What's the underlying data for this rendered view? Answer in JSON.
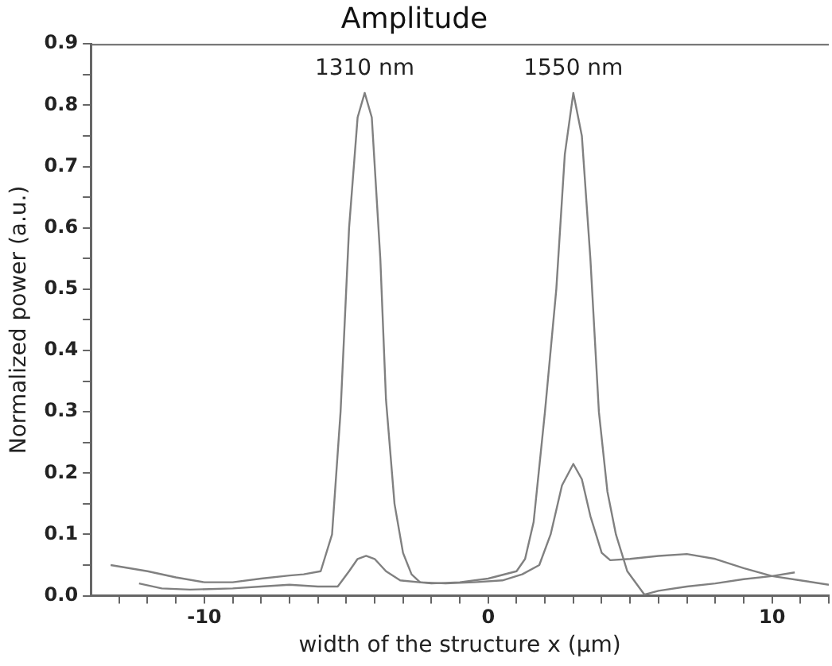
{
  "chart_data": {
    "type": "line",
    "title": "Amplitude",
    "xlabel": "width of the structure x (µm)",
    "ylabel": "Normalized power (a.u.)",
    "xlim": [
      -14,
      12
    ],
    "xticks": [
      {
        "value": -13,
        "label": null
      },
      {
        "value": -12,
        "label": null
      },
      {
        "value": -11,
        "label": null
      },
      -10,
      {
        "value": -9,
        "label": null
      },
      {
        "value": -8,
        "label": null
      },
      {
        "value": -7,
        "label": null
      },
      {
        "value": -6,
        "label": null
      },
      {
        "value": -5,
        "label": null
      },
      {
        "value": -4,
        "label": null
      },
      {
        "value": -3,
        "label": null
      },
      {
        "value": -2,
        "label": null
      },
      {
        "value": -1,
        "label": null
      },
      0,
      {
        "value": 1,
        "label": null
      },
      {
        "value": 2,
        "label": null
      },
      {
        "value": 3,
        "label": null
      },
      {
        "value": 4,
        "label": null
      },
      {
        "value": 5,
        "label": null
      },
      {
        "value": 6,
        "label": null
      },
      {
        "value": 7,
        "label": null
      },
      {
        "value": 8,
        "label": null
      },
      {
        "value": 9,
        "label": null
      },
      10,
      {
        "value": 11,
        "label": null
      },
      {
        "value": 12,
        "label": null
      }
    ],
    "ylim": [
      0,
      0.9
    ],
    "yticks": [
      {
        "value": 0,
        "label": "0.0"
      },
      {
        "value": 0.05,
        "label": null
      },
      0.1,
      {
        "value": 0.15,
        "label": null
      },
      0.2,
      {
        "value": 0.25,
        "label": null
      },
      0.3,
      {
        "value": 0.35,
        "label": null
      },
      0.4,
      {
        "value": 0.45,
        "label": null
      },
      0.5,
      {
        "value": 0.55,
        "label": null
      },
      0.6,
      {
        "value": 0.65,
        "label": null
      },
      0.7,
      {
        "value": 0.75,
        "label": null
      },
      0.8,
      {
        "value": 0.85,
        "label": null
      },
      0.9
    ],
    "grid": false,
    "legend": false,
    "marker": "none",
    "line_style": "solid",
    "series": [
      {
        "name": "1310 nm",
        "color": "#808080",
        "x": [
          -13.3,
          -12,
          -11,
          -10,
          -9,
          -8,
          -7,
          -6.5,
          -5.9,
          -5.5,
          -5.2,
          -4.9,
          -4.6,
          -4.35,
          -4.1,
          -3.8,
          -3.6,
          -3.3,
          -3,
          -2.7,
          -2.4,
          -1.5,
          -0.5,
          0.5,
          1.2,
          1.8,
          2.2,
          2.6,
          3,
          3.3,
          3.6,
          4,
          4.3,
          5,
          6,
          7,
          8,
          9,
          10,
          11,
          12
        ],
        "values": [
          0.05,
          0.04,
          0.03,
          0.022,
          0.022,
          0.028,
          0.033,
          0.035,
          0.04,
          0.1,
          0.3,
          0.6,
          0.78,
          0.82,
          0.78,
          0.55,
          0.32,
          0.15,
          0.07,
          0.035,
          0.022,
          0.02,
          0.022,
          0.025,
          0.035,
          0.05,
          0.1,
          0.18,
          0.215,
          0.19,
          0.13,
          0.07,
          0.058,
          0.06,
          0.065,
          0.068,
          0.06,
          0.045,
          0.032,
          0.025,
          0.018
        ]
      },
      {
        "name": "1550 nm",
        "color": "#808080",
        "x": [
          -12.3,
          -11.5,
          -10.5,
          -9,
          -8,
          -7,
          -6,
          -5.3,
          -4.9,
          -4.6,
          -4.3,
          -4,
          -3.6,
          -3.1,
          -2,
          -1,
          0,
          1,
          1.3,
          1.6,
          2,
          2.4,
          2.7,
          3,
          3.3,
          3.6,
          3.9,
          4.2,
          4.5,
          4.9,
          5.5,
          6,
          7,
          8,
          9,
          10,
          10.8
        ],
        "values": [
          0.02,
          0.012,
          0.01,
          0.012,
          0.015,
          0.018,
          0.015,
          0.015,
          0.04,
          0.06,
          0.065,
          0.06,
          0.04,
          0.025,
          0.02,
          0.022,
          0.028,
          0.04,
          0.06,
          0.12,
          0.3,
          0.5,
          0.72,
          0.82,
          0.75,
          0.55,
          0.3,
          0.17,
          0.1,
          0.04,
          0.002,
          0.008,
          0.015,
          0.02,
          0.027,
          0.032,
          0.038
        ]
      }
    ]
  }
}
